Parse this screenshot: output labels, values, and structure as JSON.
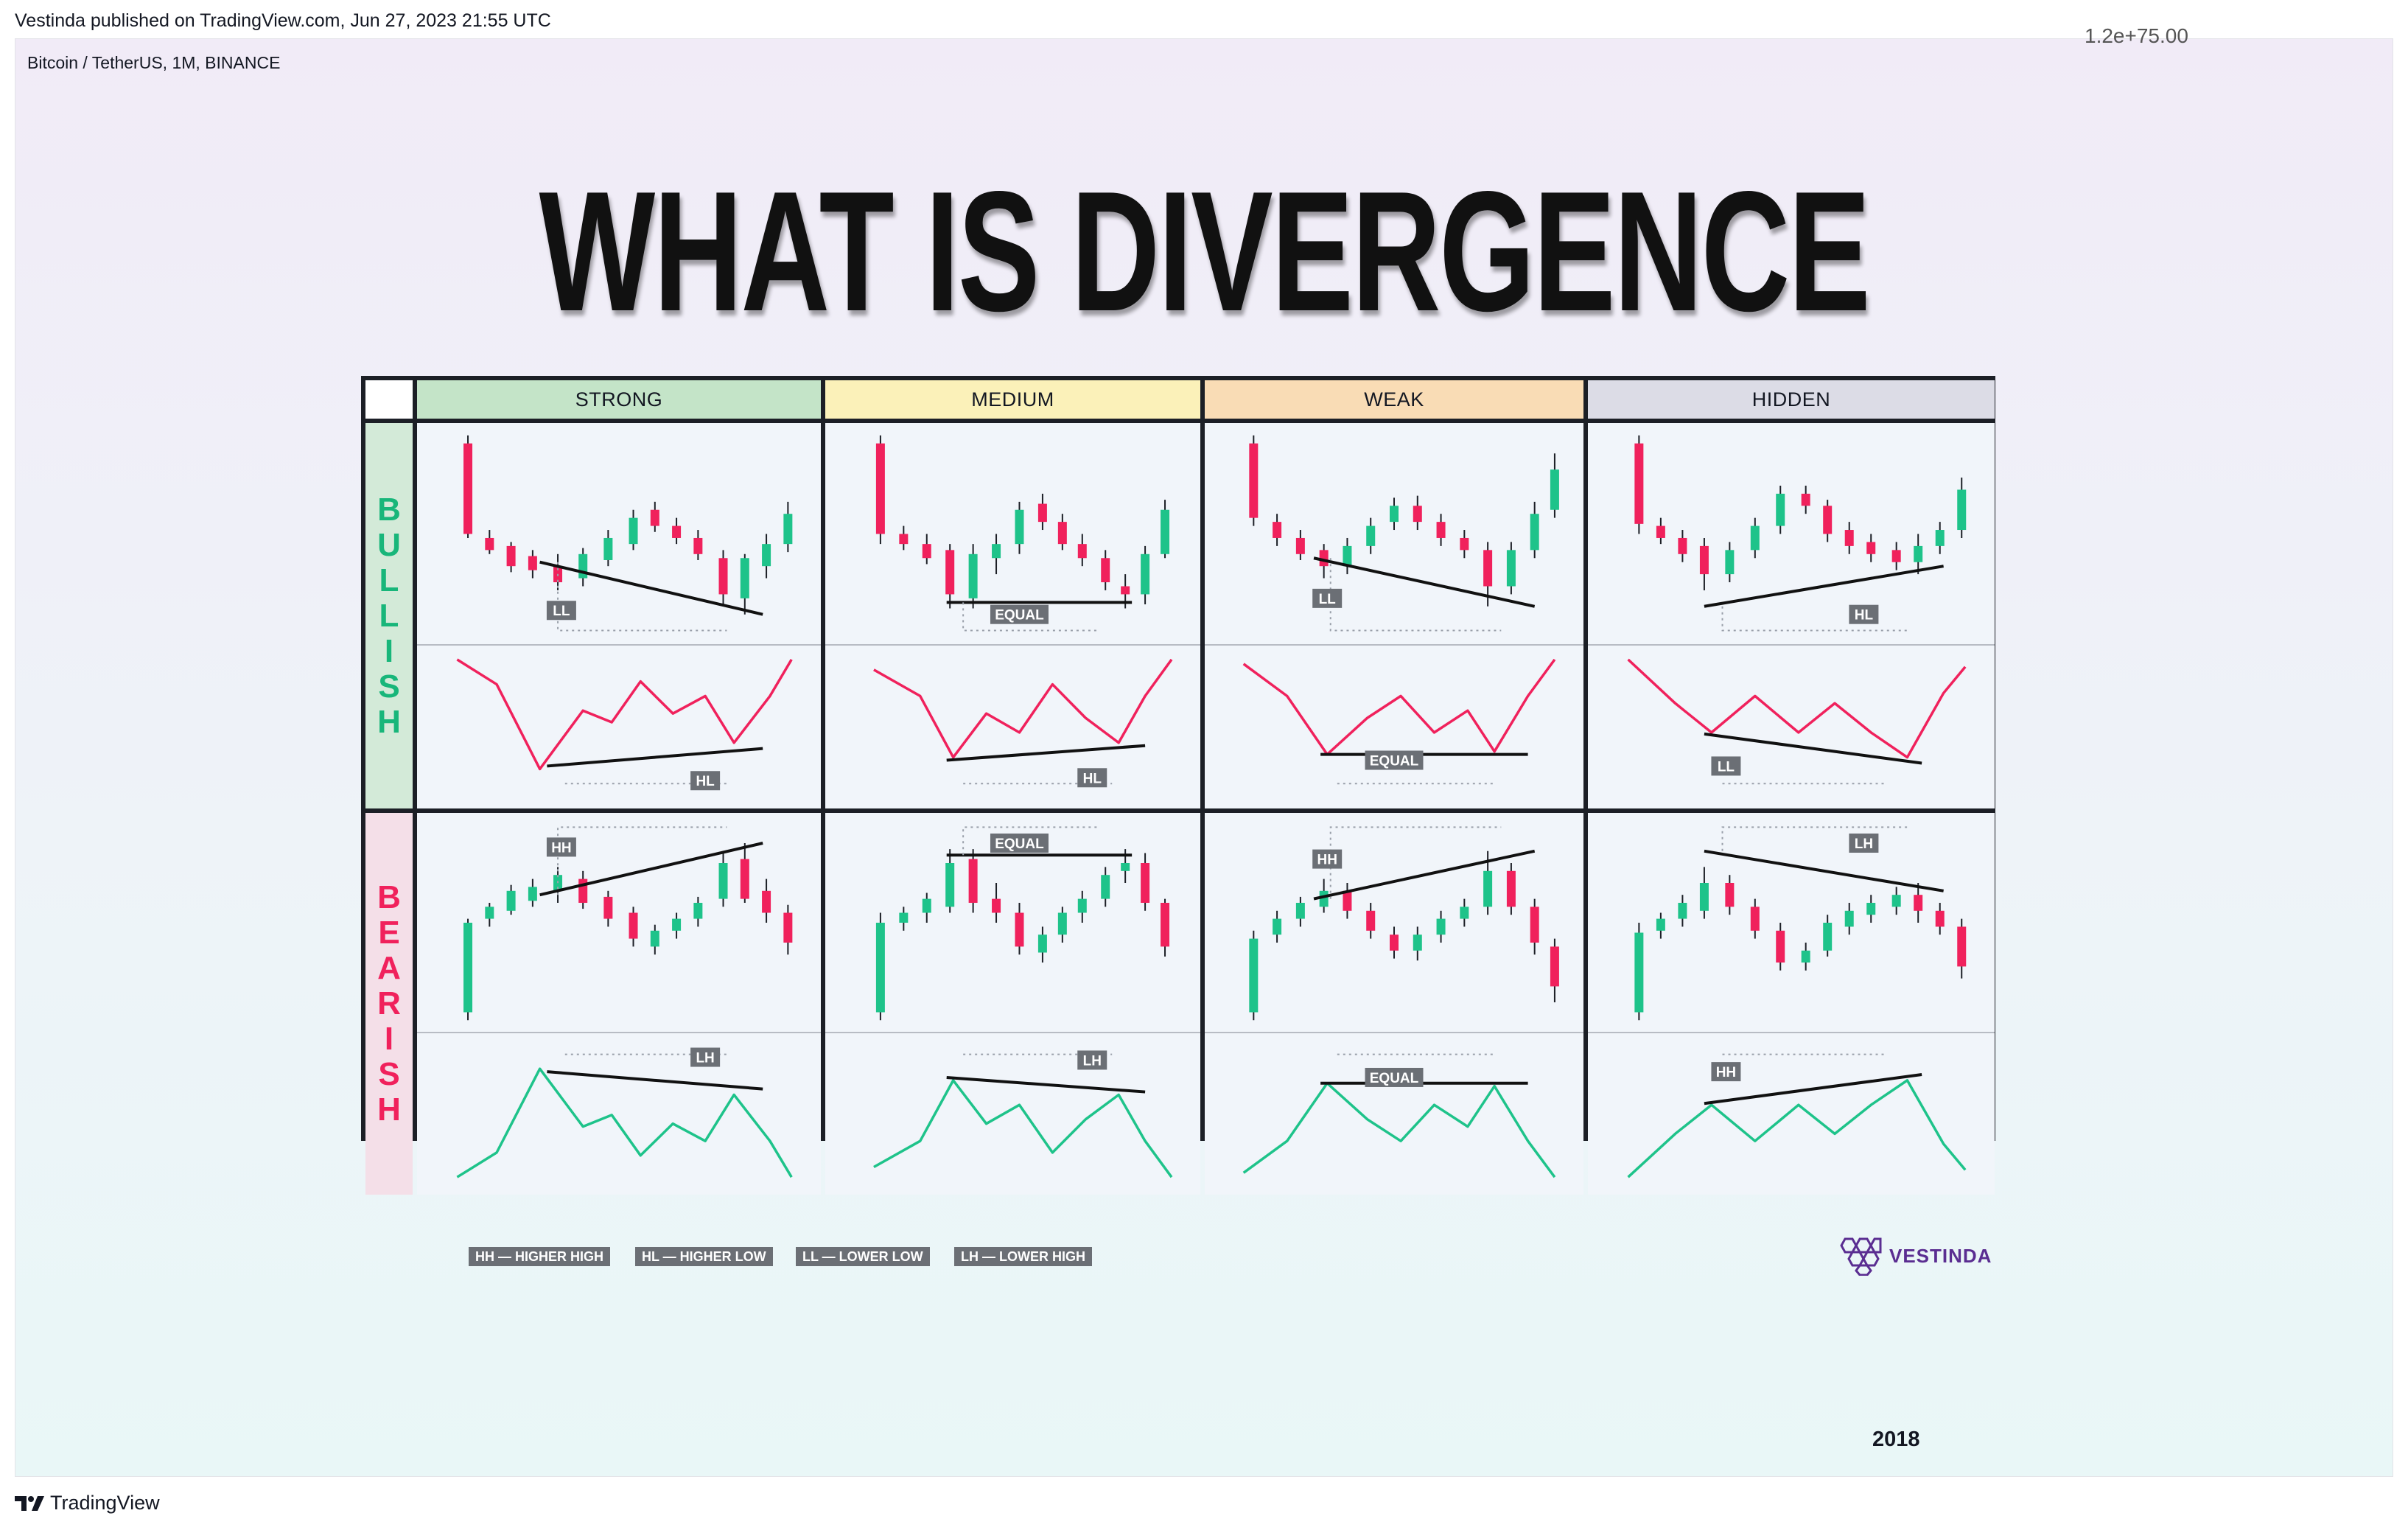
{
  "caption": {
    "published": "Vestinda published on TradingView.com, Jun 27, 2023 21:55 UTC",
    "symbol": "Bitcoin / TetherUS, 1M, BINANCE",
    "corner_value": "1.2e+75.00"
  },
  "title": "WHAT IS DIVERGENCE",
  "columns": [
    "STRONG",
    "MEDIUM",
    "WEAK",
    "HIDDEN"
  ],
  "column_colors": [
    "#c4e4c8",
    "#fbf1b9",
    "#f9dcb5",
    "#dcdce6"
  ],
  "rows": [
    {
      "label": "BULLISH",
      "color": "#18b67a",
      "bg": "#d3ead8"
    },
    {
      "label": "BEARISH",
      "color": "#f0215c",
      "bg": "#f4dfe8"
    }
  ],
  "colors": {
    "up": "#1ec38a",
    "down": "#f0215c",
    "trend": "#111111",
    "tag_bg": "#6b6f75",
    "tag_text": "#ffffff"
  },
  "chart_data": [
    {
      "type": "candlestick_diagram",
      "row": "BULLISH",
      "column": "STRONG",
      "price_tag": "LL",
      "indicator_tag": "HL"
    },
    {
      "type": "candlestick_diagram",
      "row": "BULLISH",
      "column": "MEDIUM",
      "price_tag": "EQUAL",
      "indicator_tag": "HL"
    },
    {
      "type": "candlestick_diagram",
      "row": "BULLISH",
      "column": "WEAK",
      "price_tag": "LL",
      "indicator_tag": "EQUAL"
    },
    {
      "type": "candlestick_diagram",
      "row": "BULLISH",
      "column": "HIDDEN",
      "price_tag": "HL",
      "indicator_tag": "LL"
    },
    {
      "type": "candlestick_diagram",
      "row": "BEARISH",
      "column": "STRONG",
      "price_tag": "HH",
      "indicator_tag": "LH"
    },
    {
      "type": "candlestick_diagram",
      "row": "BEARISH",
      "column": "MEDIUM",
      "price_tag": "EQUAL",
      "indicator_tag": "LH"
    },
    {
      "type": "candlestick_diagram",
      "row": "BEARISH",
      "column": "WEAK",
      "price_tag": "HH",
      "indicator_tag": "EQUAL"
    },
    {
      "type": "candlestick_diagram",
      "row": "BEARISH",
      "column": "HIDDEN",
      "price_tag": "LH",
      "indicator_tag": "HH"
    }
  ],
  "legend": [
    "HH — HIGHER HIGH",
    "HL — HIGHER LOW",
    "LL — LOWER LOW",
    "LH — LOWER HIGH"
  ],
  "brand": "VESTINDA",
  "year": "2018",
  "footer": "TradingView"
}
